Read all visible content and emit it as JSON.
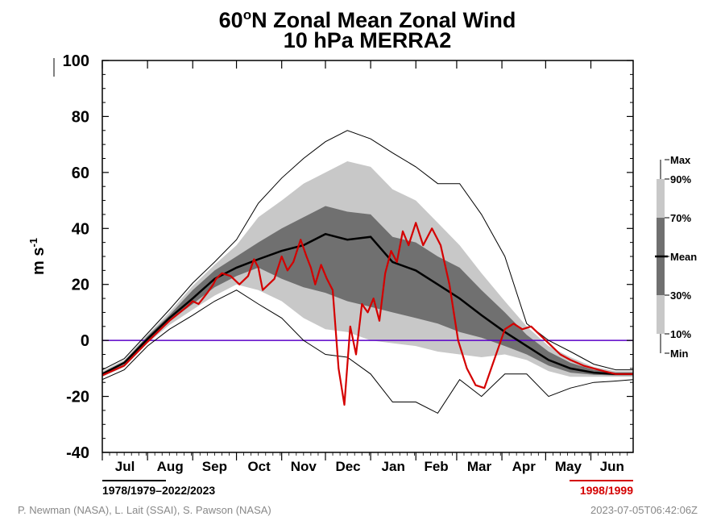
{
  "chart_data": {
    "type": "area",
    "title_main": "60",
    "title_sup": "o",
    "title_rest": "N Zonal Mean Zonal Wind",
    "subtitle": "10 hPa   MERRA2",
    "ylabel_main": "m s",
    "ylabel_sup": "-1",
    "ylim": [
      -40,
      100
    ],
    "yticks": [
      -40,
      -20,
      0,
      20,
      40,
      60,
      80,
      100
    ],
    "months": [
      "Jul",
      "Aug",
      "Sep",
      "Oct",
      "Nov",
      "Dec",
      "Jan",
      "Feb",
      "Mar",
      "Apr",
      "May",
      "Jun"
    ],
    "x_days": [
      0,
      15,
      31,
      46,
      62,
      77,
      92,
      107,
      123,
      138,
      153,
      168,
      184,
      199,
      215,
      230,
      245,
      260,
      276,
      291,
      306,
      321,
      337,
      352,
      364
    ],
    "climatology": {
      "min": [
        -14,
        -10.5,
        -2,
        4,
        9,
        14,
        18,
        13,
        8,
        0,
        -5,
        -6,
        -12,
        -22,
        -22,
        -26,
        -14,
        -20,
        -12,
        -12,
        -20,
        -17,
        -15,
        -14.5,
        -14
      ],
      "p10": [
        -13,
        -9.5,
        -1,
        5.5,
        11,
        16,
        20,
        18,
        14,
        8,
        4,
        3,
        0,
        -1,
        -2,
        -4,
        -5,
        -6,
        -5,
        -7,
        -11,
        -13,
        -13,
        -13,
        -13
      ],
      "p30": [
        -12.5,
        -8.5,
        -0.5,
        7,
        13,
        19,
        23,
        26,
        22,
        19,
        17,
        14,
        12,
        10,
        8,
        6,
        3,
        1,
        -2,
        -5,
        -9,
        -11.5,
        -12.3,
        -12.5,
        -12.5
      ],
      "mean": [
        -12,
        -8,
        0.5,
        8,
        15,
        22,
        26,
        29,
        32,
        34,
        38,
        36,
        37,
        28,
        25,
        20,
        15,
        9,
        3,
        -2,
        -7,
        -10,
        -11.5,
        -12,
        -12
      ],
      "p70": [
        -11.5,
        -7.5,
        1.5,
        9,
        18,
        25,
        30,
        35,
        40,
        44,
        48,
        46,
        45,
        37,
        35,
        30,
        26,
        18,
        10,
        2,
        -4,
        -8,
        -10.5,
        -11.5,
        -11.5
      ],
      "p90": [
        -11,
        -7,
        2,
        10,
        19.5,
        27,
        34,
        44,
        50,
        56,
        60,
        64,
        62,
        54,
        50,
        42,
        34,
        24,
        14,
        5,
        -2,
        -6,
        -9.5,
        -11,
        -11
      ],
      "max": [
        -10.5,
        -6.5,
        2.5,
        11,
        20.5,
        28,
        36,
        49,
        58,
        65,
        71,
        75,
        72,
        67,
        62,
        56,
        56,
        45,
        30,
        6,
        0,
        -4,
        -8.5,
        -10.5,
        -10.5
      ]
    },
    "highlight_year": {
      "label": "1998/1999",
      "x": [
        0,
        15,
        31,
        46,
        58,
        62,
        66,
        72,
        76,
        78,
        82,
        88,
        94,
        100,
        104,
        107,
        110,
        114,
        118,
        123,
        127,
        131,
        136,
        140,
        143,
        146,
        150,
        154,
        158,
        162,
        166,
        170,
        174,
        178,
        182,
        186,
        190,
        194,
        198,
        202,
        206,
        210,
        215,
        220,
        226,
        232,
        238,
        244,
        250,
        256,
        262,
        268,
        276,
        282,
        288,
        294,
        300,
        306,
        314,
        321,
        330,
        337,
        344,
        352,
        358,
        364
      ],
      "y": [
        -12.5,
        -9,
        -0.5,
        7,
        12,
        14,
        13,
        17,
        20,
        22,
        24,
        23,
        20,
        23,
        29,
        26,
        18,
        20,
        22,
        30,
        25,
        28,
        36,
        30,
        26,
        20,
        27,
        22,
        18,
        -10,
        -23,
        5,
        -5,
        13,
        10,
        15,
        7,
        24,
        32,
        28,
        39,
        34,
        42,
        34,
        40,
        34,
        20,
        0,
        -10,
        -16,
        -17,
        -8,
        4,
        6,
        4,
        5,
        2,
        -1,
        -5,
        -7,
        -9,
        -10,
        -11,
        -12,
        -12,
        -12
      ]
    },
    "zero_line": 0,
    "legend": [
      "Max",
      "90%",
      "70%",
      "Mean",
      "30%",
      "10%",
      "Min"
    ],
    "climatology_period": "1978/1979–2022/2023",
    "colors": {
      "outer_band": "#c8c8c8",
      "mid_band": "#a9a9a9",
      "inner_band": "#707070",
      "mean_line": "#000000",
      "extreme_line": "#000000",
      "highlight_line": "#d40000",
      "zero_line": "#5a00c8"
    }
  },
  "footer": {
    "credits": "P. Newman (NASA), L. Lait (SSAI), S. Pawson (NASA)",
    "timestamp": "2023-07-05T06:42:06Z"
  }
}
